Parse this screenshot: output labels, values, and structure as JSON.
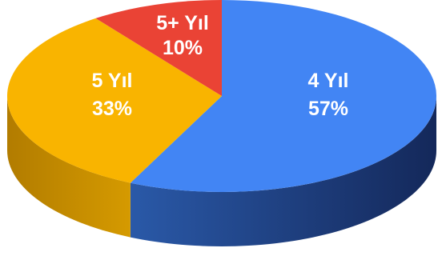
{
  "chart_data": {
    "type": "pie",
    "style": "3d",
    "slices": [
      {
        "label": "4 Yıl",
        "value": 57,
        "display": "57%",
        "color": "#4285f4",
        "side_color": "#1b3a73"
      },
      {
        "label": "5 Yıl",
        "value": 33,
        "display": "33%",
        "color": "#f9b400",
        "side_color": "#a37000"
      },
      {
        "label": "5+ Yıl",
        "value": 10,
        "display": "10%",
        "color": "#ea4335",
        "side_color": "#8e241b"
      }
    ]
  }
}
